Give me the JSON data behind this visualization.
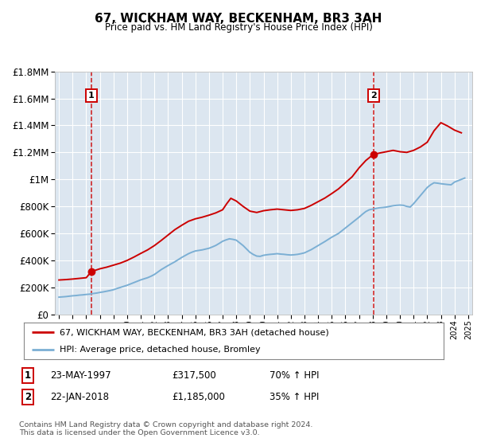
{
  "title": "67, WICKHAM WAY, BECKENHAM, BR3 3AH",
  "subtitle": "Price paid vs. HM Land Registry's House Price Index (HPI)",
  "plot_bg_color": "#dce6f0",
  "transaction1_x": 1997.38,
  "transaction1_y": 317500,
  "transaction2_x": 2018.05,
  "transaction2_y": 1185000,
  "legend_entry1": "67, WICKHAM WAY, BECKENHAM, BR3 3AH (detached house)",
  "legend_entry2": "HPI: Average price, detached house, Bromley",
  "table_row1": [
    "1",
    "23-MAY-1997",
    "£317,500",
    "70% ↑ HPI"
  ],
  "table_row2": [
    "2",
    "22-JAN-2018",
    "£1,185,000",
    "35% ↑ HPI"
  ],
  "footnote": "Contains HM Land Registry data © Crown copyright and database right 2024.\nThis data is licensed under the Open Government Licence v3.0.",
  "ylim": [
    0,
    1800000
  ],
  "xlim_start": 1994.7,
  "xlim_end": 2025.3,
  "red_color": "#cc0000",
  "blue_color": "#7bafd4",
  "grid_color": "#ffffff",
  "hpi_years": [
    1995.0,
    1995.25,
    1995.5,
    1995.75,
    1996.0,
    1996.25,
    1996.5,
    1996.75,
    1997.0,
    1997.25,
    1997.5,
    1997.75,
    1998.0,
    1998.25,
    1998.5,
    1998.75,
    1999.0,
    1999.25,
    1999.5,
    1999.75,
    2000.0,
    2000.25,
    2000.5,
    2000.75,
    2001.0,
    2001.25,
    2001.5,
    2001.75,
    2002.0,
    2002.25,
    2002.5,
    2002.75,
    2003.0,
    2003.25,
    2003.5,
    2003.75,
    2004.0,
    2004.25,
    2004.5,
    2004.75,
    2005.0,
    2005.25,
    2005.5,
    2005.75,
    2006.0,
    2006.25,
    2006.5,
    2006.75,
    2007.0,
    2007.25,
    2007.5,
    2007.75,
    2008.0,
    2008.25,
    2008.5,
    2008.75,
    2009.0,
    2009.25,
    2009.5,
    2009.75,
    2010.0,
    2010.25,
    2010.5,
    2010.75,
    2011.0,
    2011.25,
    2011.5,
    2011.75,
    2012.0,
    2012.25,
    2012.5,
    2012.75,
    2013.0,
    2013.25,
    2013.5,
    2013.75,
    2014.0,
    2014.25,
    2014.5,
    2014.75,
    2015.0,
    2015.25,
    2015.5,
    2015.75,
    2016.0,
    2016.25,
    2016.5,
    2016.75,
    2017.0,
    2017.25,
    2017.5,
    2017.75,
    2018.0,
    2018.25,
    2018.5,
    2018.75,
    2019.0,
    2019.25,
    2019.5,
    2019.75,
    2020.0,
    2020.25,
    2020.5,
    2020.75,
    2021.0,
    2021.25,
    2021.5,
    2021.75,
    2022.0,
    2022.25,
    2022.5,
    2022.75,
    2023.0,
    2023.25,
    2023.5,
    2023.75,
    2024.0,
    2024.25,
    2024.5,
    2024.75
  ],
  "hpi_values": [
    128000,
    130000,
    132000,
    135000,
    138000,
    140000,
    143000,
    145000,
    148000,
    150000,
    155000,
    158000,
    163000,
    167000,
    172000,
    177000,
    183000,
    192000,
    200000,
    208000,
    216000,
    226000,
    236000,
    246000,
    256000,
    264000,
    272000,
    283000,
    296000,
    314000,
    332000,
    347000,
    362000,
    376000,
    390000,
    406000,
    422000,
    436000,
    450000,
    461000,
    470000,
    474000,
    478000,
    484000,
    490000,
    500000,
    511000,
    526000,
    542000,
    552000,
    560000,
    556000,
    550000,
    530000,
    510000,
    485000,
    460000,
    444000,
    432000,
    430000,
    438000,
    442000,
    445000,
    447000,
    450000,
    447000,
    445000,
    442000,
    440000,
    442000,
    445000,
    450000,
    456000,
    468000,
    480000,
    495000,
    510000,
    525000,
    540000,
    556000,
    572000,
    586000,
    600000,
    620000,
    640000,
    660000,
    680000,
    700000,
    720000,
    742000,
    762000,
    775000,
    780000,
    785000,
    790000,
    792000,
    795000,
    800000,
    805000,
    808000,
    810000,
    808000,
    800000,
    795000,
    820000,
    850000,
    880000,
    910000,
    940000,
    960000,
    975000,
    972000,
    968000,
    965000,
    962000,
    960000,
    980000,
    990000,
    1000000,
    1010000
  ],
  "red_years": [
    1995.0,
    1995.5,
    1996.0,
    1996.5,
    1997.0,
    1997.38,
    1997.7,
    1998.0,
    1998.5,
    1999.0,
    1999.5,
    2000.0,
    2000.5,
    2001.0,
    2001.5,
    2002.0,
    2002.5,
    2003.0,
    2003.5,
    2004.0,
    2004.5,
    2005.0,
    2005.5,
    2006.0,
    2006.5,
    2007.0,
    2007.3,
    2007.6,
    2008.0,
    2008.5,
    2009.0,
    2009.5,
    2010.0,
    2010.5,
    2011.0,
    2011.5,
    2012.0,
    2012.5,
    2013.0,
    2013.5,
    2014.0,
    2014.5,
    2015.0,
    2015.5,
    2016.0,
    2016.5,
    2017.0,
    2017.5,
    2018.05,
    2018.5,
    2019.0,
    2019.5,
    2020.0,
    2020.5,
    2021.0,
    2021.5,
    2022.0,
    2022.5,
    2023.0,
    2023.5,
    2024.0,
    2024.5
  ],
  "red_values": [
    255000,
    258000,
    262000,
    267000,
    272000,
    317500,
    328000,
    338000,
    350000,
    365000,
    380000,
    400000,
    425000,
    452000,
    478000,
    510000,
    548000,
    588000,
    628000,
    660000,
    690000,
    708000,
    720000,
    735000,
    752000,
    775000,
    820000,
    860000,
    840000,
    800000,
    765000,
    755000,
    768000,
    775000,
    780000,
    775000,
    770000,
    775000,
    785000,
    808000,
    835000,
    862000,
    895000,
    930000,
    975000,
    1020000,
    1085000,
    1140000,
    1185000,
    1195000,
    1205000,
    1215000,
    1205000,
    1200000,
    1215000,
    1240000,
    1275000,
    1360000,
    1420000,
    1395000,
    1365000,
    1345000
  ]
}
